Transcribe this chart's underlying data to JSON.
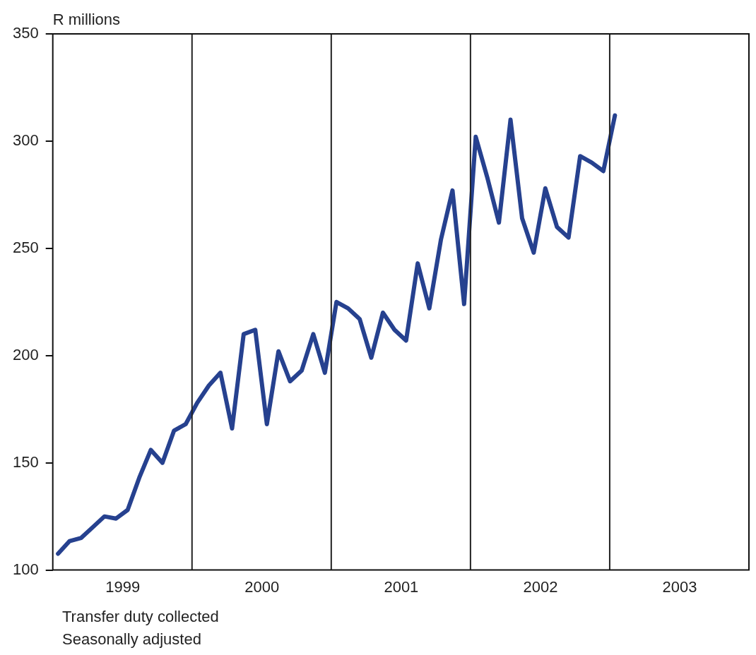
{
  "chart_data": {
    "type": "line",
    "ylabel": "R millions",
    "annotations": [
      "Transfer duty collected",
      "Seasonally adjusted"
    ],
    "x": [
      "1999-01-15",
      "1999-02-15",
      "1999-03-15",
      "1999-04-15",
      "1999-05-15",
      "1999-06-15",
      "1999-07-15",
      "1999-08-15",
      "1999-09-15",
      "1999-10-15",
      "1999-11-15",
      "1999-12-15",
      "2000-01-15",
      "2000-02-15",
      "2000-03-15",
      "2000-04-15",
      "2000-05-15",
      "2000-06-15",
      "2000-07-15",
      "2000-08-15",
      "2000-09-15",
      "2000-10-15",
      "2000-11-15",
      "2000-12-15",
      "2001-01-15",
      "2001-02-15",
      "2001-03-15",
      "2001-04-15",
      "2001-05-15",
      "2001-06-15",
      "2001-07-15",
      "2001-08-15",
      "2001-09-15",
      "2001-10-15",
      "2001-11-15",
      "2001-12-15",
      "2002-01-15",
      "2002-02-15",
      "2002-03-15",
      "2002-04-15",
      "2002-05-15",
      "2002-06-15",
      "2002-07-15",
      "2002-08-15",
      "2002-09-15",
      "2002-10-15",
      "2002-11-15",
      "2002-12-15",
      "2003-01-15"
    ],
    "series": [
      {
        "color": "#26418f",
        "values": [
          107.6,
          113.5,
          115,
          120,
          125,
          124,
          128,
          143,
          156,
          150,
          165,
          168,
          178,
          186,
          192,
          166,
          210,
          212,
          168,
          202,
          188,
          193,
          210,
          192,
          225,
          222,
          217,
          199,
          220,
          212,
          207,
          243,
          222,
          254,
          277,
          224,
          302,
          283,
          262,
          310,
          264,
          248,
          278,
          260,
          255,
          293,
          290,
          286,
          312
        ]
      }
    ],
    "xlim": [
      "1999-01-01",
      "2004-01-01"
    ],
    "xticks": [
      {
        "value": "1999-07-02",
        "label": "1999"
      },
      {
        "value": "2000-07-02",
        "label": "2000"
      },
      {
        "value": "2001-07-02",
        "label": "2001"
      },
      {
        "value": "2002-07-02",
        "label": "2002"
      },
      {
        "value": "2003-07-02",
        "label": "2003"
      }
    ],
    "ylim": [
      100,
      350
    ],
    "yticks": [
      100,
      150,
      200,
      250,
      300,
      350
    ],
    "ref_lines": [
      {
        "axis": "x",
        "value": "2000-01-01",
        "color": "#222222"
      },
      {
        "axis": "x",
        "value": "2001-01-01",
        "color": "#222222"
      },
      {
        "axis": "x",
        "value": "2002-01-01",
        "color": "#222222"
      },
      {
        "axis": "x",
        "value": "2003-01-01",
        "color": "#222222"
      }
    ],
    "grid": false,
    "legend": false,
    "marker": "none",
    "line_style": "solid"
  }
}
